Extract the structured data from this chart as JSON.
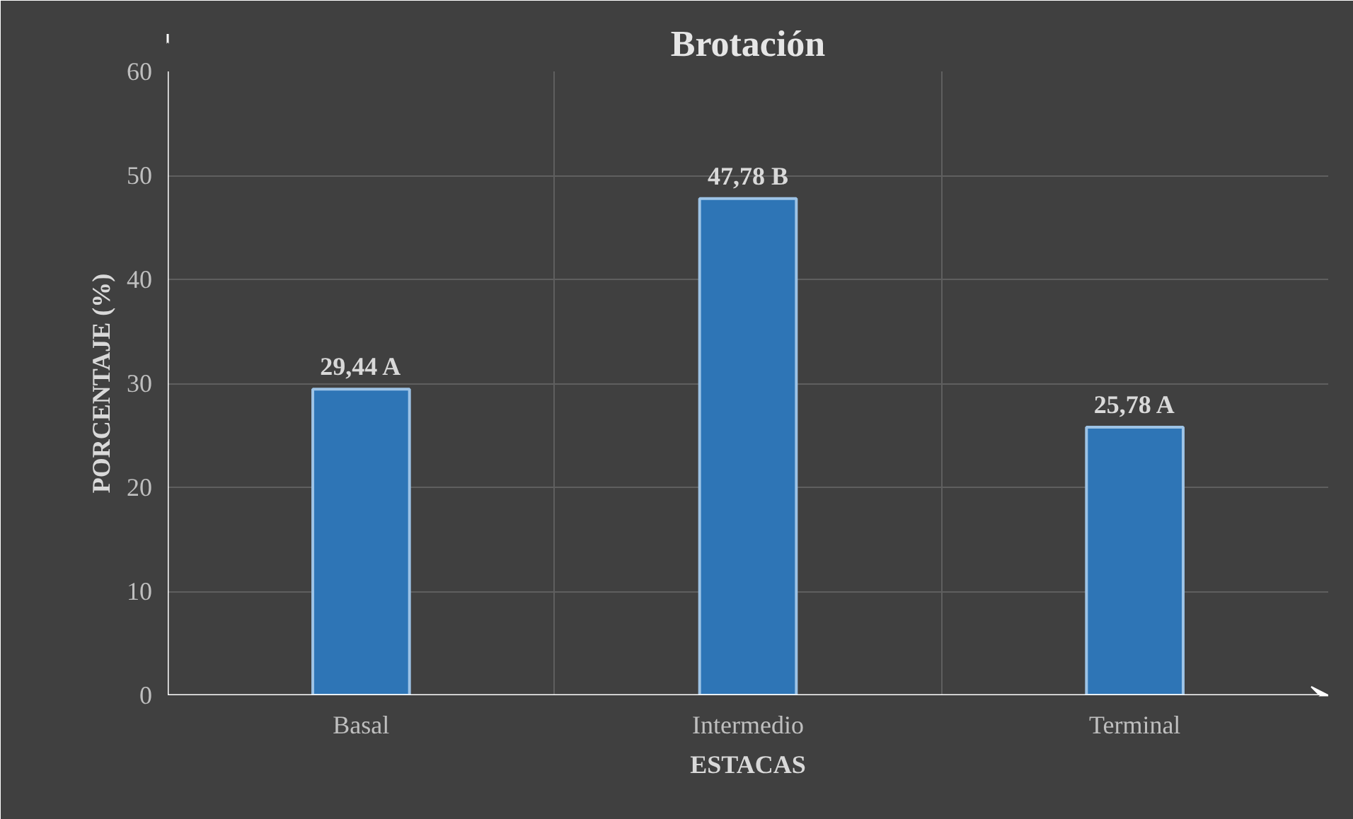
{
  "chart_data": {
    "type": "bar",
    "title": "Brotación",
    "xlabel": "ESTACAS",
    "ylabel": "PORCENTAJE (%)",
    "categories": [
      "Basal",
      "Intermedio",
      "Terminal"
    ],
    "values": [
      29.44,
      47.78,
      25.78
    ],
    "value_labels": [
      "29,44 A",
      "47,78 B",
      "25,78 A"
    ],
    "color": "#2e75b6",
    "ylim": [
      0,
      60
    ],
    "yticks": [
      0,
      10,
      20,
      30,
      40,
      50,
      60
    ],
    "grid": true
  }
}
